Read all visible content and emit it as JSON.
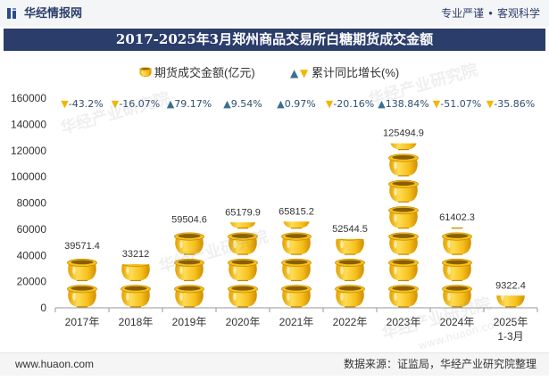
{
  "header": {
    "brand": "华经情报网",
    "tagline": [
      "专业严谨",
      "客观科学"
    ]
  },
  "footer": {
    "site": "www.huaon.com",
    "source": "数据来源：证监局，华经产业研究院整理"
  },
  "watermark": {
    "text": "华经产业研究院",
    "url": "www.huaon.com"
  },
  "colors": {
    "brand": "#2b3d6b",
    "gold": "#f2b705"
  },
  "chart_data": {
    "type": "bar",
    "title": "2017-2025年3月郑州商品交易所白糖期货成交金额",
    "categories": [
      "2017年",
      "2018年",
      "2019年",
      "2020年",
      "2021年",
      "2022年",
      "2023年",
      "2024年",
      "2025年\n1-3月"
    ],
    "series": [
      {
        "name": "期货成交金额(亿元)",
        "values": [
          39571.4,
          33212,
          59504.6,
          65179.9,
          65815.2,
          52544.5,
          125494.9,
          61402.3,
          9322.4
        ]
      },
      {
        "name": "累计同比增长(%)",
        "values": [
          -43.2,
          -16.07,
          79.17,
          9.54,
          0.97,
          -20.16,
          138.84,
          -51.07,
          -35.86
        ],
        "unit": "%"
      }
    ],
    "yticks": [
      0,
      20000,
      40000,
      60000,
      80000,
      100000,
      120000,
      140000,
      160000
    ],
    "ylim": [
      0,
      160000
    ],
    "xlabel": "",
    "ylabel": "",
    "grid": false,
    "legend_position": "top-center",
    "colors": {
      "up": "#3a6f8f",
      "down": "#f2b705",
      "growth_text": "#2f4f6f"
    }
  }
}
